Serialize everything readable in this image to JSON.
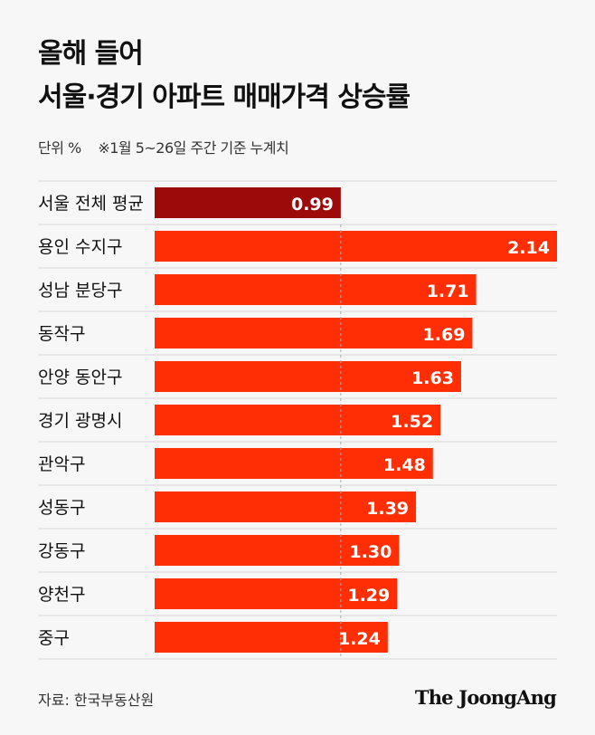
{
  "header": {
    "title_line1": "올해 들어",
    "title_line2": "서울·경기 아파트 매매가격 상승률",
    "unit": "단위 %",
    "note": "※1월 5~26일 주간 기준 누계치"
  },
  "colors": {
    "highlight": "#9c0a0a",
    "bar": "#ff2e05",
    "grid": "#d5d5d5",
    "dashed": "#aaaaaa"
  },
  "chart_data": {
    "type": "bar",
    "orientation": "horizontal",
    "title": "올해 들어 서울·경기 아파트 매매가격 상승률",
    "unit": "%",
    "categories": [
      "서울 전체 평균",
      "용인 수지구",
      "성남 분당구",
      "동작구",
      "안양 동안구",
      "경기 광명시",
      "관악구",
      "성동구",
      "강동구",
      "양천구",
      "중구"
    ],
    "values": [
      0.99,
      2.14,
      1.71,
      1.69,
      1.63,
      1.52,
      1.48,
      1.39,
      1.3,
      1.29,
      1.24
    ],
    "value_labels": [
      "0.99",
      "2.14",
      "1.71",
      "1.69",
      "1.63",
      "1.52",
      "1.48",
      "1.39",
      "1.30",
      "1.29",
      "1.24"
    ],
    "highlight_index": 0,
    "reference_value": 0.99,
    "xlim": [
      0,
      2.14
    ]
  },
  "footer": {
    "source": "자료: 한국부동산원",
    "logo": "The JoongAng"
  }
}
